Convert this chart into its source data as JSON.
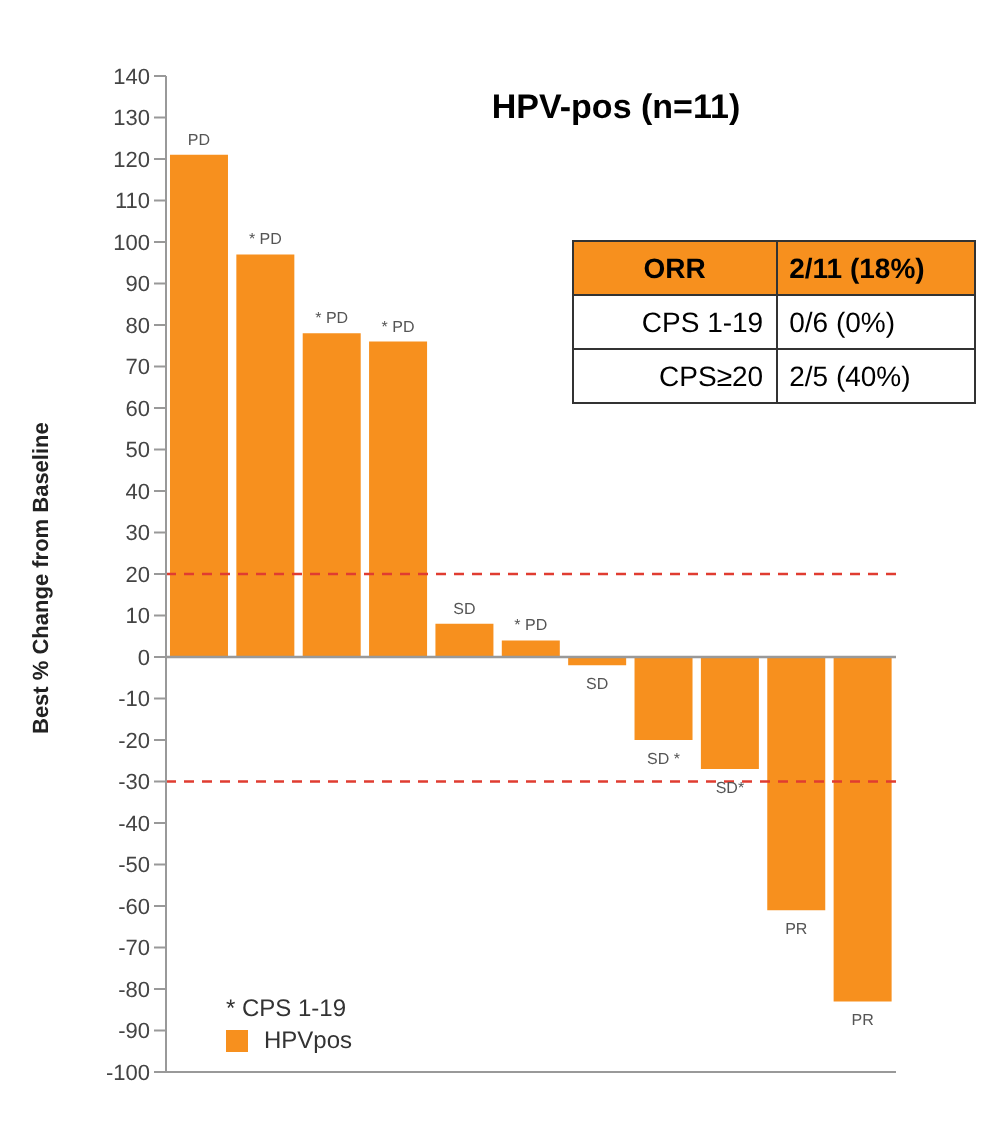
{
  "chart_data": {
    "type": "bar",
    "title": "HPV-pos (n=11)",
    "ylabel": "Best % Change from Baseline",
    "categories": [
      null,
      null,
      null,
      null,
      null,
      null,
      null,
      null,
      null,
      null,
      null
    ],
    "series": [
      {
        "name": "HPVpos",
        "color": "#f7901e",
        "values": [
          121,
          97,
          78,
          76,
          8,
          4,
          -2,
          -20,
          -27,
          -61,
          -83
        ],
        "value_labels": [
          "PD",
          "* PD",
          "* PD",
          "* PD",
          "SD",
          "* PD",
          "SD",
          "SD *",
          "SD*",
          "PR",
          "PR"
        ]
      }
    ],
    "ylim": [
      -100,
      140
    ],
    "yticks": [
      -100,
      -90,
      -80,
      -70,
      -60,
      -50,
      -40,
      -30,
      -20,
      -10,
      0,
      10,
      20,
      30,
      40,
      50,
      60,
      70,
      80,
      90,
      100,
      110,
      120,
      130,
      140
    ],
    "ref_lines": [
      {
        "axis": "y",
        "value": 20,
        "color": "#e03c31",
        "line_style": "dashed"
      },
      {
        "axis": "y",
        "value": -30,
        "color": "#e03c31",
        "line_style": "dashed"
      },
      {
        "axis": "y",
        "value": 0,
        "color": "#999999",
        "line_style": "solid"
      }
    ],
    "annotations": [
      "* CPS 1-19",
      "ORR",
      "2/11 (18%)",
      "CPS 1-19",
      "0/6 (0%)",
      "CPS≥20",
      "2/5 (40%)"
    ],
    "legend": "bottom left",
    "tick_labels": "y"
  }
}
